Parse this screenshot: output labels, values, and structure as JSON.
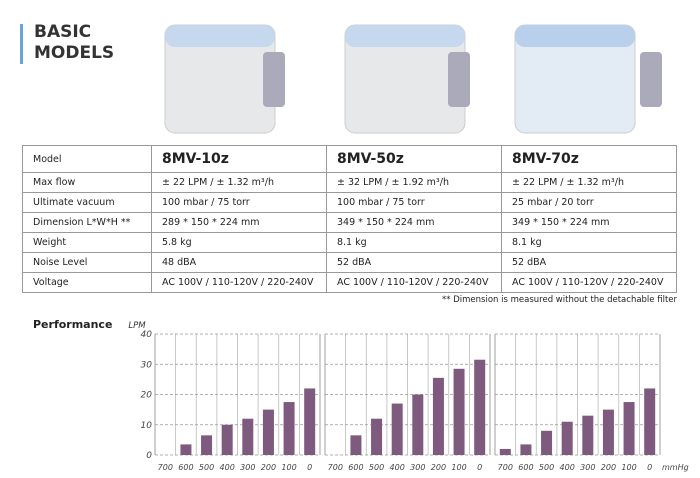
{
  "header": {
    "title": "BASIC MODELS"
  },
  "table": {
    "rows": [
      [
        "Model",
        "8MV-10z",
        "8MV-50z",
        "8MV-70z"
      ],
      [
        "Max flow",
        "± 22 LPM  /  ± 1.32 m³/h",
        "± 32 LPM  /  ± 1.92 m³/h",
        "± 22 LPM  /  ± 1.32 m³/h"
      ],
      [
        "Ultimate vacuum",
        "100 mbar / 75 torr",
        "100 mbar / 75 torr",
        "25 mbar / 20 torr"
      ],
      [
        "Dimension L*W*H **",
        "289 * 150 * 224 mm",
        "349 * 150 * 224 mm",
        "349 * 150 * 224 mm"
      ],
      [
        "Weight",
        "5.8 kg",
        "8.1 kg",
        "8.1 kg"
      ],
      [
        "Noise Level",
        "48 dBA",
        "52 dBA",
        "52 dBA"
      ],
      [
        "Voltage",
        "AC 100V / 110-120V / 220-240V",
        "AC 100V / 110-120V / 220-240V",
        "AC 100V / 110-120V / 220-240V"
      ]
    ]
  },
  "note": "** Dimension is measured without the detachable filter",
  "section_title": "Performance",
  "chart_data": [
    {
      "type": "bar",
      "ylabel": "LPM",
      "categories": [
        "700",
        "600",
        "500",
        "400",
        "300",
        "200",
        "100",
        "0"
      ],
      "values": [
        0,
        3.5,
        6.5,
        10,
        12,
        15,
        17.5,
        22
      ],
      "color": "#7d5a7e",
      "ylim": [
        0,
        40
      ],
      "yticks": [
        0,
        10,
        20,
        30,
        40
      ],
      "grid": true
    },
    {
      "type": "bar",
      "categories": [
        "700",
        "600",
        "500",
        "400",
        "300",
        "200",
        "100",
        "0"
      ],
      "values": [
        0,
        6.5,
        12,
        17,
        20,
        25.5,
        28.5,
        31.5
      ],
      "color": "#7d5a7e",
      "ylim": [
        0,
        40
      ],
      "yticks": [
        0,
        10,
        20,
        30,
        40
      ],
      "grid": true
    },
    {
      "type": "bar",
      "xlabel": "mmHg",
      "categories": [
        "700",
        "600",
        "500",
        "400",
        "300",
        "200",
        "100",
        "0"
      ],
      "values": [
        2,
        3.5,
        8,
        11,
        13,
        15,
        17.5,
        22
      ],
      "color": "#7d5a7e",
      "ylim": [
        0,
        40
      ],
      "yticks": [
        0,
        10,
        20,
        30,
        40
      ],
      "grid": true
    }
  ]
}
